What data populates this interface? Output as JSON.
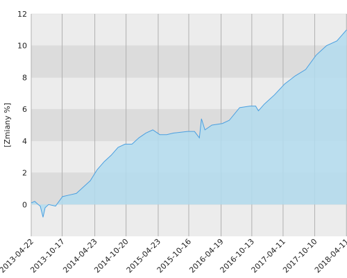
{
  "chart_data": {
    "type": "area",
    "y_label": "[Zmiany %]",
    "x": [
      "2013-04-22",
      "2013-05-12",
      "2013-06-01",
      "2013-06-13",
      "2013-06-29",
      "2013-07-11",
      "2013-07-31",
      "2013-09-09",
      "2013-10-19",
      "2013-11-28",
      "2014-01-07",
      "2014-02-16",
      "2014-03-28",
      "2014-05-07",
      "2014-06-16",
      "2014-07-26",
      "2014-09-04",
      "2014-10-14",
      "2014-11-23",
      "2015-01-02",
      "2015-02-11",
      "2015-03-23",
      "2015-05-02",
      "2015-06-11",
      "2015-07-21",
      "2015-10-09",
      "2015-11-18",
      "2015-12-16",
      "2015-12-28",
      "2016-01-17",
      "2016-02-26",
      "2016-04-26",
      "2016-06-05",
      "2016-08-04",
      "2016-10-03",
      "2016-11-04",
      "2016-11-20",
      "2016-12-22",
      "2017-02-20",
      "2017-04-21",
      "2017-06-20",
      "2017-08-19",
      "2017-10-18",
      "2017-12-17",
      "2018-02-15",
      "2018-03-19",
      "2018-04-12"
    ],
    "values": [
      0.1,
      0.2,
      0.0,
      -0.1,
      -0.8,
      -0.2,
      0.0,
      -0.1,
      0.5,
      0.6,
      0.7,
      1.1,
      1.5,
      2.2,
      2.7,
      3.1,
      3.6,
      3.8,
      3.8,
      4.2,
      4.5,
      4.7,
      4.4,
      4.4,
      4.5,
      4.6,
      4.6,
      4.2,
      5.4,
      4.7,
      5.0,
      5.1,
      5.3,
      6.1,
      6.2,
      6.2,
      5.9,
      6.3,
      6.9,
      7.6,
      8.1,
      8.5,
      9.4,
      10.0,
      10.3,
      10.7,
      11.0
    ],
    "color": "#4a9fe0",
    "fill": "#b3dcee",
    "xlim": [
      "2013-04-22",
      "2018-04-14"
    ],
    "xticks": [
      "2013-04-22",
      "2013-10-17",
      "2014-04-23",
      "2014-10-20",
      "2015-04-23",
      "2015-10-16",
      "2016-04-19",
      "2016-10-13",
      "2017-04-11",
      "2017-10-10",
      "2018-04-11"
    ],
    "ylim": [
      -2,
      12
    ],
    "yticks": [
      0,
      2,
      4,
      6,
      8,
      10,
      12
    ],
    "grid": true
  }
}
